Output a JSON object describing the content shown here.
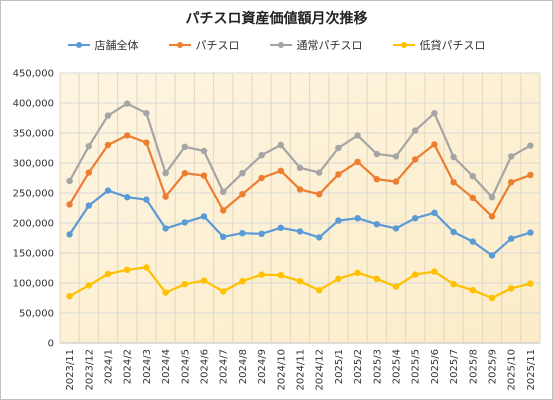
{
  "chart_data": {
    "type": "line",
    "title": "パチスロ資産価値額月次推移",
    "xlabel": "",
    "ylabel": "",
    "ylim": [
      0,
      450000
    ],
    "yticks": [
      0,
      50000,
      100000,
      150000,
      200000,
      250000,
      300000,
      350000,
      400000,
      450000
    ],
    "ytick_labels": [
      "0",
      "50,000",
      "100,000",
      "150,000",
      "200,000",
      "250,000",
      "300,000",
      "350,000",
      "400,000",
      "450,000"
    ],
    "grid": true,
    "legend": "top",
    "background": "#fdf3dc",
    "categories": [
      "2023/11",
      "2023/12",
      "2024/1",
      "2024/2",
      "2024/3",
      "2024/4",
      "2024/5",
      "2024/6",
      "2024/7",
      "2024/8",
      "2024/9",
      "2024/10",
      "2024/11",
      "2024/12",
      "2025/1",
      "2025/2",
      "2025/3",
      "2025/4",
      "2025/5",
      "2025/6",
      "2025/7",
      "2025/8",
      "2025/9",
      "2025/10",
      "2025/11"
    ],
    "series": [
      {
        "name": "店舗全体",
        "color": "#5b9bd5",
        "values": [
          181000,
          229000,
          254000,
          243000,
          239000,
          191000,
          201000,
          211000,
          177000,
          183000,
          182000,
          192000,
          186000,
          176000,
          204000,
          208000,
          198000,
          191000,
          208000,
          217000,
          185000,
          169000,
          146000,
          174000,
          184000
        ]
      },
      {
        "name": "パチスロ",
        "color": "#ed7d31",
        "values": [
          231000,
          284000,
          330000,
          346000,
          334000,
          244000,
          283000,
          279000,
          221000,
          248000,
          275000,
          287000,
          256000,
          248000,
          281000,
          302000,
          273000,
          269000,
          306000,
          331000,
          268000,
          242000,
          211000,
          268000,
          280000
        ]
      },
      {
        "name": "通常パチスロ",
        "color": "#a5a5a5",
        "values": [
          270000,
          328000,
          379000,
          399000,
          383000,
          283000,
          327000,
          320000,
          252000,
          283000,
          313000,
          330000,
          292000,
          284000,
          325000,
          346000,
          315000,
          311000,
          354000,
          383000,
          310000,
          278000,
          243000,
          311000,
          329000
        ]
      },
      {
        "name": "低貸パチスロ",
        "color": "#ffc000",
        "values": [
          78000,
          96000,
          115000,
          122000,
          126000,
          84000,
          98000,
          104000,
          86000,
          103000,
          114000,
          113000,
          103000,
          88000,
          107000,
          117000,
          107000,
          94000,
          114000,
          119000,
          98000,
          88000,
          75000,
          91000,
          99000
        ]
      }
    ]
  }
}
